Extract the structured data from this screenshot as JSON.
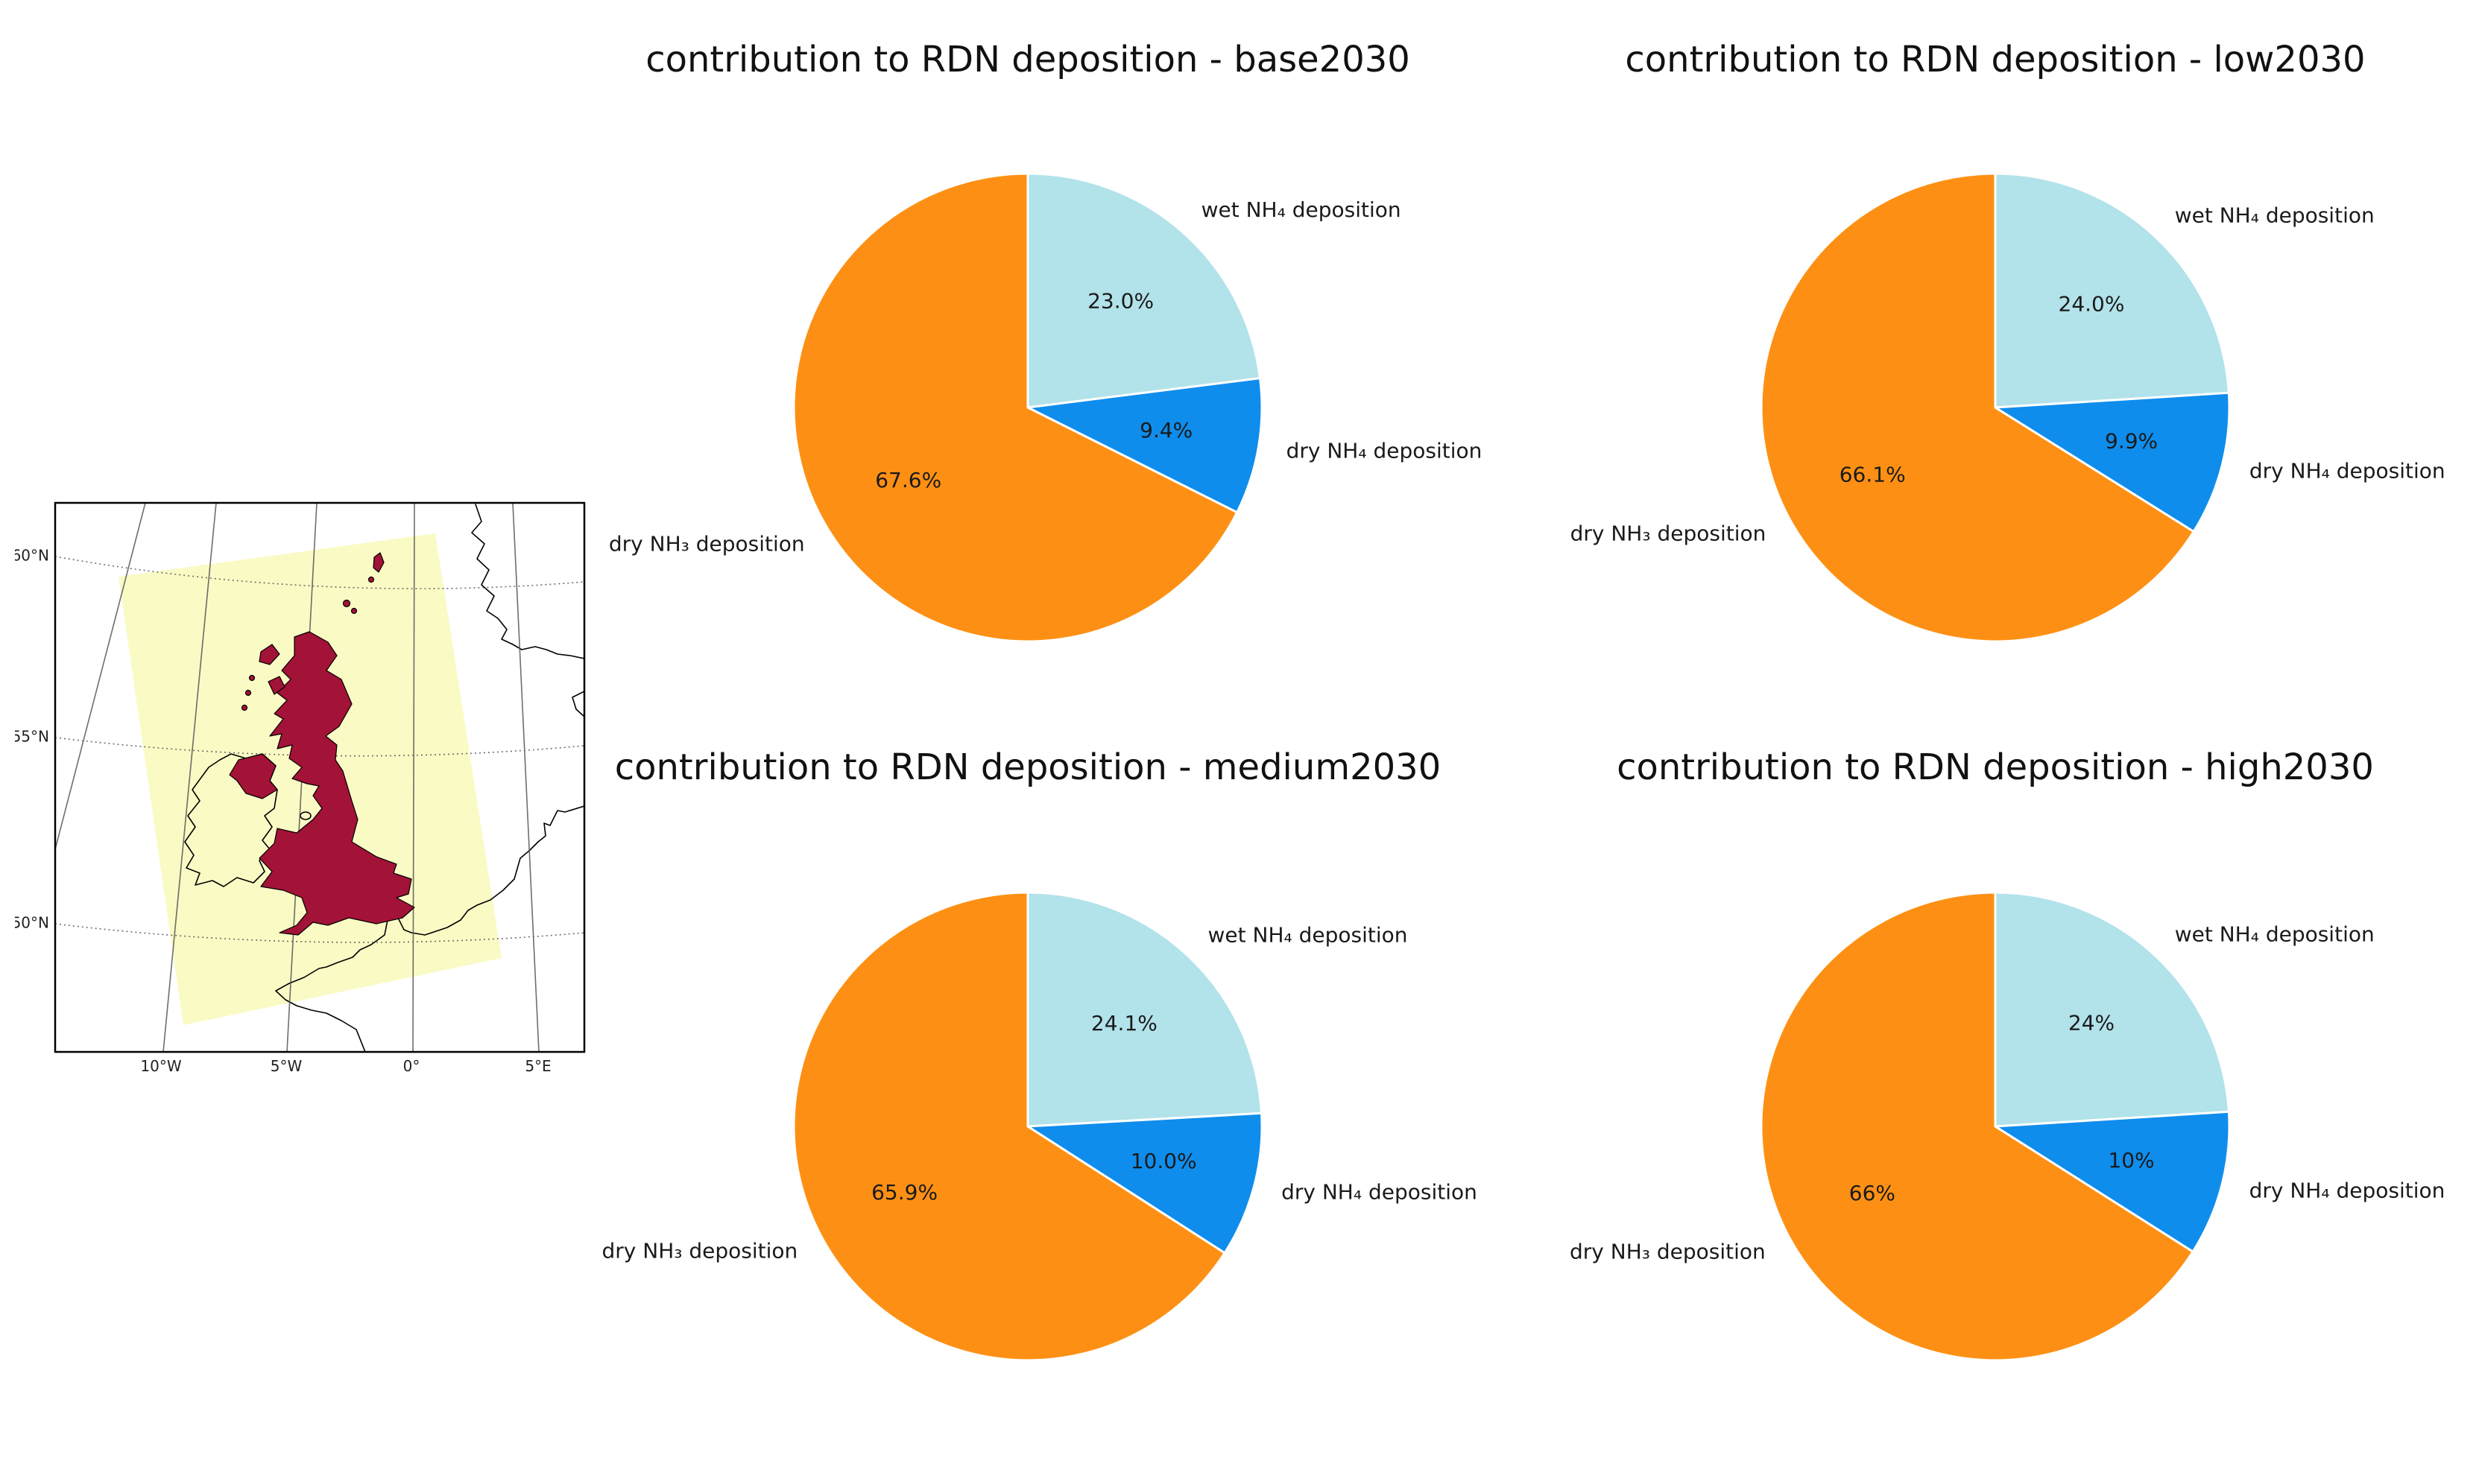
{
  "figure": {
    "background": "#FFFFFF"
  },
  "chart_data": [
    {
      "type": "pie",
      "title": "contribution to RDN deposition - base2030",
      "labels": [
        "wet NH₄ deposition",
        "dry NH₄ deposition",
        "dry NH₃ deposition"
      ],
      "values": [
        23.0,
        9.4,
        67.6
      ],
      "pct_labels": [
        "23.0%",
        "9.4%",
        "67.6%"
      ],
      "colors": [
        "#B2E2EA",
        "#0F8DEC",
        "#FD9014"
      ],
      "start_angle": 90,
      "clockwise": true,
      "pct_distance": 0.6,
      "label_distance": 1.12
    },
    {
      "type": "pie",
      "title": "contribution to RDN deposition - low2030",
      "labels": [
        "wet NH₄ deposition",
        "dry NH₄ deposition",
        "dry NH₃ deposition"
      ],
      "values": [
        24.0,
        9.9,
        66.1
      ],
      "pct_labels": [
        "24.0%",
        "9.9%",
        "66.1%"
      ],
      "colors": [
        "#B2E2EA",
        "#0F8DEC",
        "#FD9014"
      ],
      "start_angle": 90,
      "clockwise": true,
      "pct_distance": 0.6,
      "label_distance": 1.12
    },
    {
      "type": "pie",
      "title": "contribution to RDN deposition - medium2030",
      "labels": [
        "wet NH₄ deposition",
        "dry NH₄ deposition",
        "dry NH₃ deposition"
      ],
      "values": [
        24.1,
        10.0,
        65.9
      ],
      "pct_labels": [
        "24.1%",
        "10.0%",
        "65.9%"
      ],
      "colors": [
        "#B2E2EA",
        "#0F8DEC",
        "#FD9014"
      ],
      "start_angle": 90,
      "clockwise": true,
      "pct_distance": 0.6,
      "label_distance": 1.12
    },
    {
      "type": "pie",
      "title": "contribution to RDN deposition - high2030",
      "labels": [
        "wet NH₄ deposition",
        "dry NH₄ deposition",
        "dry NH₃ deposition"
      ],
      "values": [
        24,
        10,
        66
      ],
      "pct_labels": [
        "24%",
        "10%",
        "66%"
      ],
      "colors": [
        "#B2E2EA",
        "#0F8DEC",
        "#FD9014"
      ],
      "start_angle": 90,
      "clockwise": true,
      "pct_distance": 0.6,
      "label_distance": 1.12
    }
  ],
  "map": {
    "x_ticks": [
      "10°W",
      "5°W",
      "0°",
      "5°E"
    ],
    "y_ticks": [
      "60°N",
      "55°N",
      "50°N"
    ],
    "colors": {
      "domain_fill": "#FAFAC5",
      "land_fill": "#A31237",
      "coastline": "#000000",
      "grid": "#555555",
      "frame": "#000000",
      "sea": "#FFFFFF"
    }
  }
}
